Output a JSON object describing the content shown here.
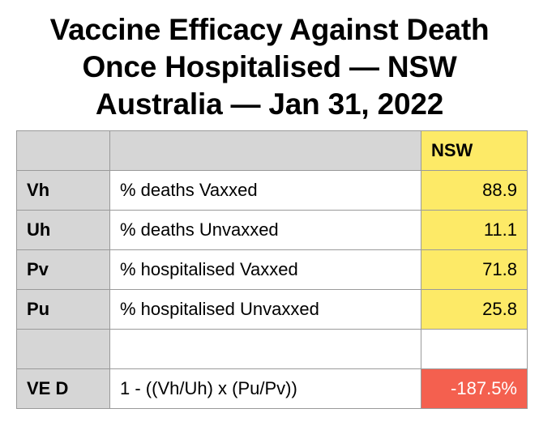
{
  "title": {
    "line1": "Vaccine Efficacy Against Death",
    "line2": "Once Hospitalised — NSW",
    "line3": "Australia — Jan 31, 2022"
  },
  "table": {
    "column_header": "NSW",
    "rows": [
      {
        "label": "Vh",
        "description": "% deaths Vaxxed",
        "value": "88.9"
      },
      {
        "label": "Uh",
        "description": "% deaths Unvaxxed",
        "value": "11.1"
      },
      {
        "label": "Pv",
        "description": "% hospitalised Vaxxed",
        "value": "71.8"
      },
      {
        "label": "Pu",
        "description": "% hospitalised Unvaxxed",
        "value": "25.8"
      },
      {
        "label": "",
        "description": "",
        "value": ""
      },
      {
        "label": "VE D",
        "description": "1 - ((Vh/Uh) x (Pu/Pv))",
        "value": "-187.5%"
      }
    ]
  },
  "colors": {
    "header_gray": "#d6d6d6",
    "value_yellow": "#fdea67",
    "result_red": "#f4604f"
  }
}
